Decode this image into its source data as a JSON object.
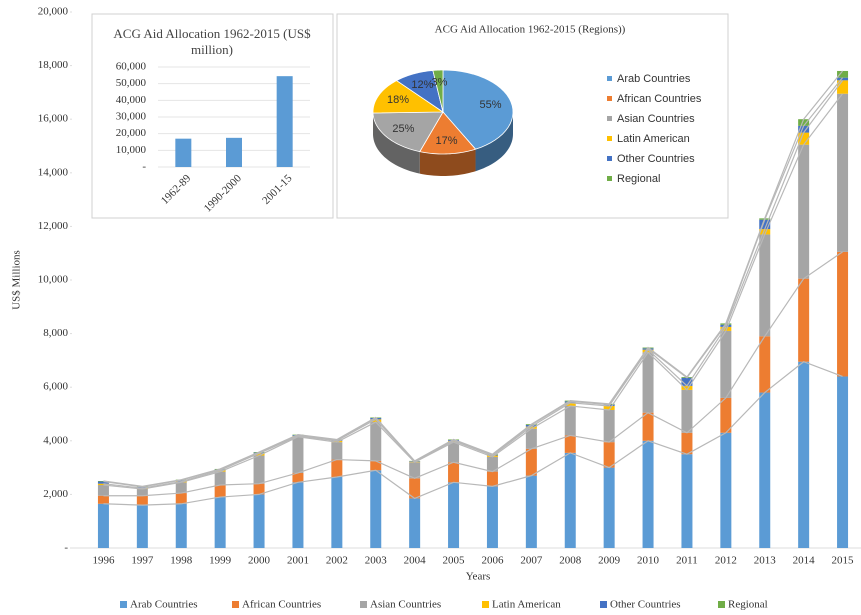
{
  "chart_data": [
    {
      "type": "bar",
      "stacked": true,
      "connector_lines": true,
      "x_label": "Years",
      "y_label": "US$ Millions",
      "categories": [
        "1996",
        "1997",
        "1998",
        "1999",
        "2000",
        "2001",
        "2002",
        "2003",
        "2004",
        "2005",
        "2006",
        "2007",
        "2008",
        "2009",
        "2010",
        "2011",
        "2012",
        "2013",
        "2014",
        "2015"
      ],
      "series": [
        {
          "name": "Arab Countries",
          "color": "#5b9bd5",
          "values": [
            1650,
            1600,
            1650,
            1900,
            2000,
            2450,
            2650,
            2900,
            1850,
            2450,
            2300,
            2700,
            3550,
            3000,
            4000,
            3500,
            4300,
            5800,
            6950,
            6400
          ]
        },
        {
          "name": "African Countries",
          "color": "#ed7d31",
          "values": [
            300,
            350,
            400,
            450,
            400,
            350,
            650,
            350,
            750,
            750,
            550,
            1000,
            650,
            950,
            1050,
            800,
            1300,
            2100,
            3100,
            4650
          ]
        },
        {
          "name": "Asian Countries",
          "color": "#a5a5a5",
          "values": [
            400,
            250,
            400,
            500,
            1050,
            1350,
            650,
            1450,
            600,
            750,
            550,
            750,
            1100,
            1200,
            2250,
            1600,
            2500,
            3800,
            5000,
            5900
          ]
        },
        {
          "name": "Latin American",
          "color": "#ffc000",
          "values": [
            50,
            30,
            30,
            50,
            80,
            30,
            50,
            100,
            20,
            50,
            50,
            80,
            120,
            150,
            100,
            150,
            150,
            200,
            450,
            500
          ]
        },
        {
          "name": "Other Countries",
          "color": "#4472c4",
          "values": [
            80,
            50,
            50,
            30,
            30,
            30,
            30,
            50,
            20,
            30,
            30,
            60,
            50,
            50,
            50,
            300,
            80,
            350,
            250,
            100
          ]
        },
        {
          "name": "Regional",
          "color": "#70ad47",
          "values": [
            20,
            20,
            20,
            20,
            20,
            20,
            20,
            20,
            10,
            20,
            20,
            30,
            30,
            30,
            30,
            30,
            50,
            50,
            250,
            250
          ]
        }
      ],
      "ylim": [
        0,
        20000
      ],
      "yticks": [
        {
          "value": 0,
          "label": "-"
        },
        {
          "value": 2000,
          "label": "2,000"
        },
        {
          "value": 4000,
          "label": "4,000"
        },
        {
          "value": 6000,
          "label": "6,000"
        },
        {
          "value": 8000,
          "label": "8,000"
        },
        {
          "value": 10000,
          "label": "10,000"
        },
        {
          "value": 12000,
          "label": "12,000"
        },
        {
          "value": 14000,
          "label": "14,000"
        },
        {
          "value": 16000,
          "label": "16,000"
        },
        {
          "value": 18000,
          "label": "18,000"
        },
        {
          "value": 20000,
          "label": "20,000"
        }
      ],
      "legend": "bottom",
      "grid": false
    },
    {
      "type": "bar",
      "title": "ACG Aid Allocation 1962-2015 (US$ million)",
      "categories": [
        "1962-89",
        "1990-2000",
        "2001-15"
      ],
      "values": [
        17000,
        17500,
        54500
      ],
      "color": "#5b9bd5",
      "ylim": [
        0,
        60000
      ],
      "yticks": [
        {
          "value": 0,
          "label": "-"
        },
        {
          "value": 10000,
          "label": "10,000"
        },
        {
          "value": 20000,
          "label": "20,000"
        },
        {
          "value": 30000,
          "label": "30,000"
        },
        {
          "value": 40000,
          "label": "40,000"
        },
        {
          "value": 50000,
          "label": "50,000"
        },
        {
          "value": 60000,
          "label": "60,000"
        }
      ],
      "grid": true
    },
    {
      "type": "pie",
      "title": "ACG Aid Allocation 1962-2015 (Regions))",
      "categories": [
        "Arab Countries",
        "African Countries",
        "Asian Countries",
        "Latin American",
        "Other Countries",
        "Regional"
      ],
      "values": [
        55,
        17,
        25,
        18,
        12,
        3
      ],
      "value_labels": [
        "55%",
        "17%",
        "25%",
        "18%",
        "12%",
        "3%"
      ],
      "colors": [
        "#5b9bd5",
        "#ed7d31",
        "#a5a5a5",
        "#ffc000",
        "#4472c4",
        "#70ad47"
      ],
      "legend": "right"
    }
  ]
}
